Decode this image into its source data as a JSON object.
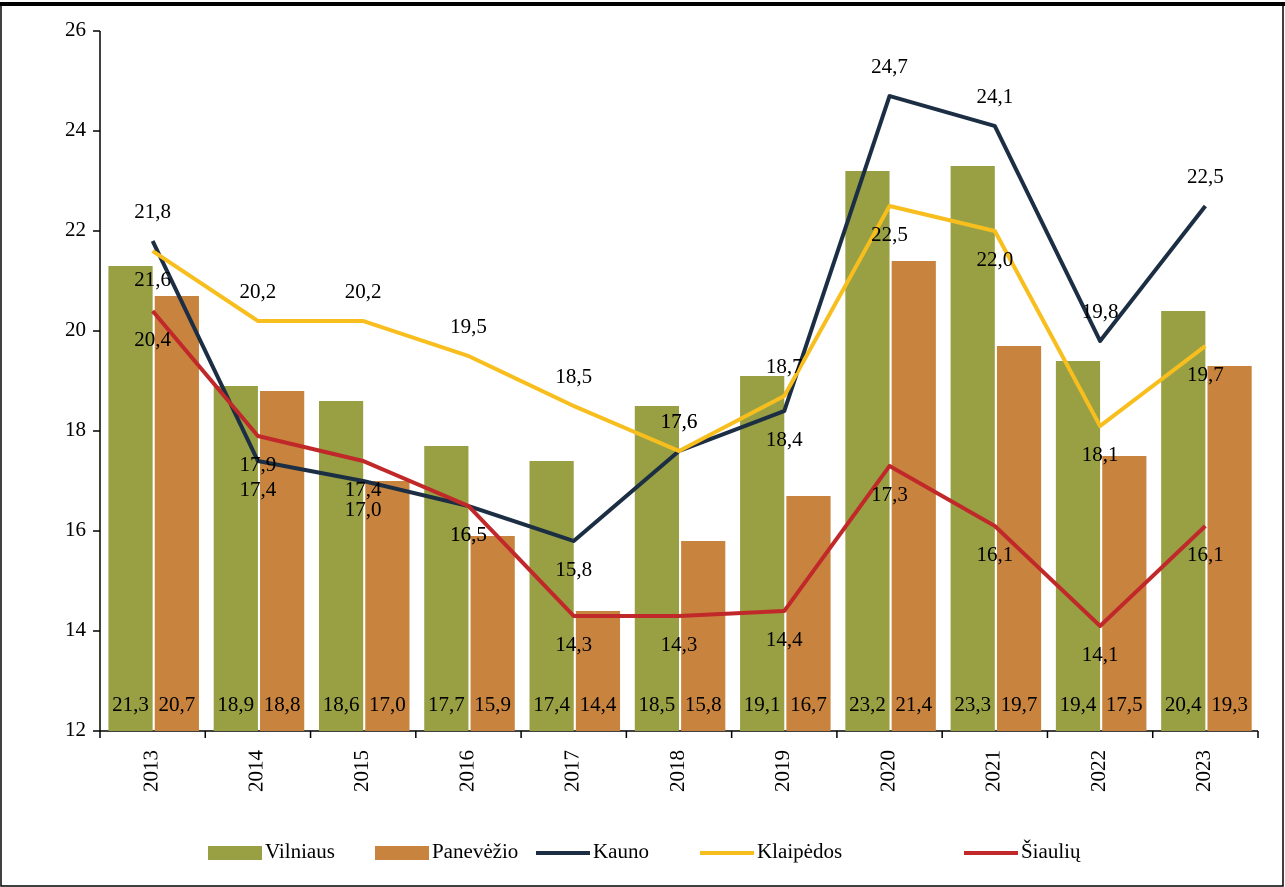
{
  "chart_data": {
    "type": "bar",
    "categories": [
      "2013",
      "2014",
      "2015",
      "2016",
      "2017",
      "2018",
      "2019",
      "2020",
      "2021",
      "2022",
      "2023"
    ],
    "series": [
      {
        "name": "Vilniaus",
        "type": "bar",
        "color": "#98a043",
        "values": [
          21.3,
          18.9,
          18.6,
          17.7,
          17.4,
          18.5,
          19.1,
          23.2,
          23.3,
          19.4,
          20.4
        ],
        "value_labels": [
          "21,3",
          "18,9",
          "18,6",
          "17,7",
          "17,4",
          "18,5",
          "19,1",
          "23,2",
          "23,3",
          "19,4",
          "20,4"
        ]
      },
      {
        "name": "Panevėžio",
        "type": "bar",
        "color": "#c8843e",
        "values": [
          20.7,
          18.8,
          17.0,
          15.9,
          14.4,
          15.8,
          16.7,
          21.4,
          19.7,
          17.5,
          19.3
        ],
        "value_labels": [
          "20,7",
          "18,8",
          "17,0",
          "15,9",
          "14,4",
          "15,8",
          "16,7",
          "21,4",
          "19,7",
          "17,5",
          "19,3"
        ]
      },
      {
        "name": "Kauno",
        "type": "line",
        "color": "#1c2e44",
        "values": [
          21.8,
          17.4,
          17.0,
          16.5,
          15.8,
          17.6,
          18.4,
          24.7,
          24.1,
          19.8,
          22.5
        ],
        "value_labels": [
          "21,8",
          "17,4",
          "17,0",
          "16,5",
          "15,8",
          "17,6",
          "18,4",
          "24,7",
          "24,1",
          "19,8",
          "22,5"
        ]
      },
      {
        "name": "Klaipėdos",
        "type": "line",
        "color": "#f7be1e",
        "values": [
          21.6,
          20.2,
          20.2,
          19.5,
          18.5,
          17.6,
          18.7,
          22.5,
          22.0,
          18.1,
          19.7
        ],
        "value_labels": [
          "21,6",
          "20,2",
          "20,2",
          "19,5",
          "18,5",
          "17,6",
          "18,7",
          "22,5",
          "22,0",
          "18,1",
          "19,7"
        ]
      },
      {
        "name": "Šiaulių",
        "type": "line",
        "color": "#c0282a",
        "values": [
          20.4,
          17.9,
          17.4,
          16.5,
          14.3,
          14.3,
          14.4,
          17.3,
          16.1,
          14.1,
          16.1
        ],
        "value_labels": [
          "20,4",
          "17,9",
          "17,4",
          "16,5",
          "14,3",
          "14,3",
          "14,4",
          "17,3",
          "16,1",
          "14,1",
          "16,1"
        ]
      }
    ],
    "ylim": [
      12,
      26
    ],
    "yticks": [
      12,
      14,
      16,
      18,
      20,
      22,
      24,
      26
    ],
    "legend": "bottom"
  }
}
